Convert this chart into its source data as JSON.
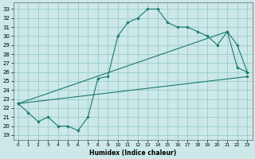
{
  "xlabel": "Humidex (Indice chaleur)",
  "background_color": "#cce8e8",
  "grid_color": "#99cccc",
  "line_color": "#1a7a6a",
  "xlim": [
    -0.5,
    23.5
  ],
  "ylim": [
    18.5,
    33.7
  ],
  "yticks": [
    19,
    20,
    21,
    22,
    23,
    24,
    25,
    26,
    27,
    28,
    29,
    30,
    31,
    32,
    33
  ],
  "xticks": [
    0,
    1,
    2,
    3,
    4,
    5,
    6,
    7,
    8,
    9,
    10,
    11,
    12,
    13,
    14,
    15,
    16,
    17,
    18,
    19,
    20,
    21,
    22,
    23
  ],
  "line1_x": [
    0,
    1,
    2,
    3,
    4,
    5,
    6,
    7,
    8,
    9,
    10,
    11,
    12,
    13,
    14,
    15,
    16,
    17,
    18,
    19,
    20,
    21,
    22,
    23
  ],
  "line1_y": [
    22.5,
    21.5,
    20.5,
    21.0,
    20.0,
    20.0,
    19.5,
    21.0,
    25.3,
    25.5,
    30.0,
    31.5,
    32.0,
    33.0,
    33.0,
    31.5,
    31.0,
    31.0,
    30.5,
    30.0,
    29.0,
    30.5,
    26.5,
    26.0
  ],
  "line2_x": [
    0,
    21,
    22,
    23
  ],
  "line2_y": [
    22.5,
    30.5,
    29.0,
    26.0
  ],
  "line3_x": [
    0,
    23
  ],
  "line3_y": [
    22.5,
    25.5
  ],
  "xlabel_fontsize": 5.5,
  "tick_fontsize": 5.0
}
